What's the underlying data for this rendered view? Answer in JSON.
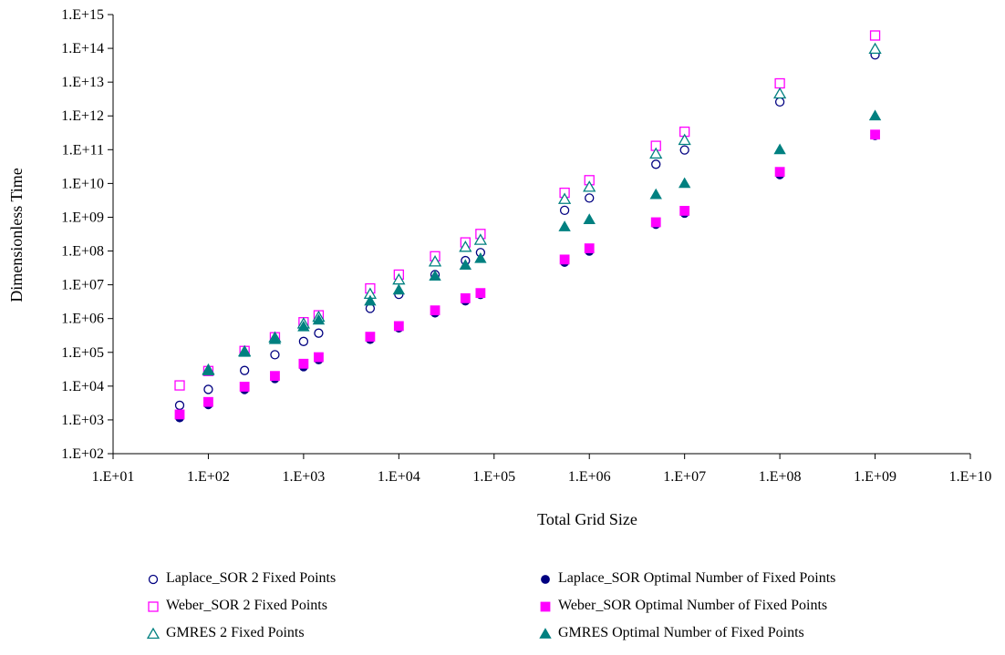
{
  "chart_data": {
    "type": "scatter",
    "title": "",
    "xlabel": "Total Grid Size",
    "ylabel": "Dimensionless Time",
    "xscale": "log",
    "yscale": "log",
    "xlim": [
      10,
      10000000000
    ],
    "ylim": [
      100,
      1000000000000000
    ],
    "x_ticks": [
      "1.E+01",
      "1.E+02",
      "1.E+03",
      "1.E+04",
      "1.E+05",
      "1.E+06",
      "1.E+07",
      "1.E+08",
      "1.E+09",
      "1.E+10"
    ],
    "y_ticks": [
      "1.E+02",
      "1.E+03",
      "1.E+04",
      "1.E+05",
      "1.E+06",
      "1.E+07",
      "1.E+08",
      "1.E+09",
      "1.E+10",
      "1.E+11",
      "1.E+12",
      "1.E+13",
      "1.E+14",
      "1.E+15"
    ],
    "grid": false,
    "legend_position": "bottom",
    "series": [
      {
        "name": "Laplace_SOR 2 Fixed Points",
        "marker": "circle-open",
        "color": "#000080",
        "points": [
          [
            50,
            2700
          ],
          [
            100,
            8000
          ],
          [
            240,
            29000
          ],
          [
            500,
            85000
          ],
          [
            1000,
            210000
          ],
          [
            1440,
            370000
          ],
          [
            5000,
            2000000
          ],
          [
            10000,
            5200000
          ],
          [
            24000,
            20000000
          ],
          [
            50000,
            52000000
          ],
          [
            72000,
            90000000
          ],
          [
            550000,
            1600000000
          ],
          [
            1000000,
            3700000000
          ],
          [
            5000000,
            37000000000
          ],
          [
            10000000,
            98000000000
          ],
          [
            100000000,
            2600000000000
          ],
          [
            1000000000,
            64000000000000
          ]
        ]
      },
      {
        "name": "Laplace_SOR Optimal Number of Fixed Points",
        "marker": "circle-filled",
        "color": "#000080",
        "points": [
          [
            50,
            1150
          ],
          [
            100,
            2800
          ],
          [
            240,
            7800
          ],
          [
            500,
            16500
          ],
          [
            1000,
            37000
          ],
          [
            1440,
            60000
          ],
          [
            5000,
            240000
          ],
          [
            10000,
            520000
          ],
          [
            24000,
            1450000
          ],
          [
            50000,
            3300000
          ],
          [
            72000,
            5100000
          ],
          [
            550000,
            46000000
          ],
          [
            1000000,
            98000000
          ],
          [
            5000000,
            610000000
          ],
          [
            10000000,
            1300000000
          ],
          [
            100000000,
            18000000000
          ],
          [
            1000000000,
            260000000000
          ]
        ]
      },
      {
        "name": "Weber_SOR 2 Fixed Points",
        "marker": "square-open",
        "color": "#FF00FF",
        "points": [
          [
            50,
            10500
          ],
          [
            100,
            28000
          ],
          [
            240,
            110000
          ],
          [
            500,
            280000
          ],
          [
            1000,
            780000
          ],
          [
            1440,
            1250000
          ],
          [
            5000,
            7800000
          ],
          [
            10000,
            20000000
          ],
          [
            24000,
            70000000
          ],
          [
            50000,
            180000000
          ],
          [
            72000,
            320000000
          ],
          [
            550000,
            5300000000
          ],
          [
            1000000,
            12500000000
          ],
          [
            5000000,
            130000000000
          ],
          [
            10000000,
            340000000000
          ],
          [
            100000000,
            9200000000000
          ],
          [
            1000000000,
            240000000000000
          ]
        ]
      },
      {
        "name": "Weber_SOR Optimal Number of Fixed Points",
        "marker": "square-filled",
        "color": "#FF00FF",
        "points": [
          [
            50,
            1450
          ],
          [
            100,
            3400
          ],
          [
            240,
            9600
          ],
          [
            500,
            20000
          ],
          [
            1000,
            46000
          ],
          [
            1440,
            72000
          ],
          [
            5000,
            290000
          ],
          [
            10000,
            600000
          ],
          [
            24000,
            1750000
          ],
          [
            50000,
            4000000
          ],
          [
            72000,
            5700000
          ],
          [
            550000,
            56000000
          ],
          [
            1000000,
            120000000
          ],
          [
            5000000,
            710000000
          ],
          [
            10000000,
            1550000000
          ],
          [
            100000000,
            22000000000
          ],
          [
            1000000000,
            280000000000
          ]
        ]
      },
      {
        "name": "GMRES 2 Fixed Points",
        "marker": "triangle-open",
        "color": "#008080",
        "points": [
          [
            100,
            30000
          ],
          [
            240,
            105000
          ],
          [
            500,
            270000
          ],
          [
            1000,
            700000
          ],
          [
            1440,
            1100000
          ],
          [
            5000,
            5300000
          ],
          [
            10000,
            14000000
          ],
          [
            24000,
            48000000
          ],
          [
            50000,
            130000000
          ],
          [
            72000,
            210000000
          ],
          [
            550000,
            3400000000
          ],
          [
            1000000,
            7800000000
          ],
          [
            5000000,
            75000000000
          ],
          [
            10000000,
            190000000000
          ],
          [
            100000000,
            4500000000000
          ],
          [
            1000000000,
            95000000000000
          ]
        ]
      },
      {
        "name": "GMRES Optimal Number of Fixed Points",
        "marker": "triangle-filled",
        "color": "#008080",
        "points": [
          [
            100,
            28000
          ],
          [
            240,
            100000
          ],
          [
            500,
            240000
          ],
          [
            1000,
            570000
          ],
          [
            1440,
            900000
          ],
          [
            5000,
            3300000
          ],
          [
            10000,
            7000000
          ],
          [
            24000,
            18000000
          ],
          [
            50000,
            38000000
          ],
          [
            72000,
            60000000
          ],
          [
            550000,
            520000000
          ],
          [
            1000000,
            850000000
          ],
          [
            5000000,
            4700000000
          ],
          [
            10000000,
            10000000000
          ],
          [
            100000000,
            100000000000
          ],
          [
            1000000000,
            1000000000000
          ]
        ]
      }
    ]
  }
}
